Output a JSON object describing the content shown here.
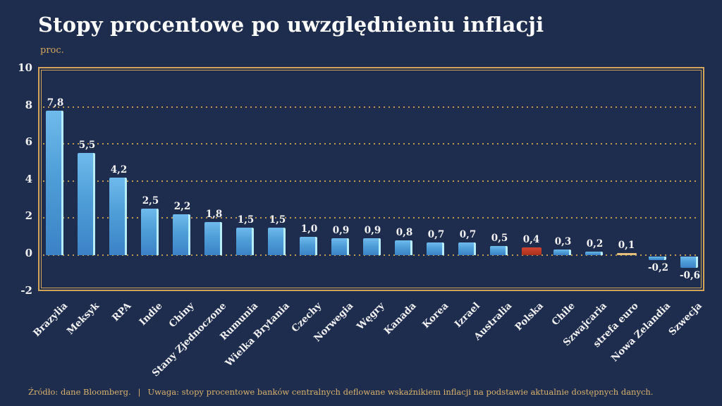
{
  "header": {
    "title": "Stopy procentowe po uwzględnieniu inflacji",
    "unit_label": "proc."
  },
  "chart_data": {
    "type": "bar",
    "title": "Stopy procentowe po uwzględnieniu inflacji",
    "ylabel": "proc.",
    "ylim": [
      -2,
      10
    ],
    "yticks": [
      10,
      8,
      6,
      4,
      2,
      0,
      -2
    ],
    "gridlines_at": [
      8,
      6,
      4,
      2,
      0
    ],
    "grid_style": "dotted gold horizontal lines",
    "legend_position": "none",
    "categories": [
      "Brazylia",
      "Meksyk",
      "RPA",
      "Indie",
      "Chiny",
      "Stany Zjednoczone",
      "Rumunia",
      "Wielka Brytania",
      "Czechy",
      "Norwegia",
      "Węgry",
      "Kanada",
      "Korea",
      "Izrael",
      "Australia",
      "Polska",
      "Chile",
      "Szwajcaria",
      "strefa euro",
      "Nowa Zelandia",
      "Szwecja"
    ],
    "values": [
      7.8,
      5.5,
      4.2,
      2.5,
      2.2,
      1.8,
      1.5,
      1.5,
      1.0,
      0.9,
      0.9,
      0.8,
      0.7,
      0.7,
      0.5,
      0.4,
      0.3,
      0.2,
      0.1,
      -0.2,
      -0.6
    ],
    "labels_display": [
      "7,8",
      "5,5",
      "4,2",
      "2,5",
      "2,2",
      "1,8",
      "1,5",
      "1,5",
      "1,0",
      "0,9",
      "0,9",
      "0,8",
      "0,7",
      "0,7",
      "0,5",
      "0,4",
      "0,3",
      "0,2",
      "0,1",
      "-0,2",
      "-0,6"
    ],
    "bar_color_keys": [
      "blue",
      "blue",
      "blue",
      "blue",
      "blue",
      "blue",
      "blue",
      "blue",
      "blue",
      "blue",
      "blue",
      "blue",
      "blue",
      "blue",
      "blue",
      "red",
      "blue",
      "blue",
      "gold",
      "blue",
      "blue"
    ],
    "palette": {
      "background": "#1e2c4e",
      "bar_blue_top": "#6fbaec",
      "bar_blue_bottom": "#3b82c6",
      "bar_blue_edge": "#b7edf8",
      "highlight_red": "#c7402a",
      "highlight_gold": "#e5c07c",
      "frame_gold": "#d2a559",
      "grid_gold": "#c9a052",
      "label_white": "#ffffff",
      "footer_gold": "#d9b36b"
    }
  },
  "footer": {
    "source": "Źródło: dane Bloomberg.",
    "separator": "|",
    "note": "Uwaga: stopy procentowe banków centralnych deflowane wskaźnikiem inflacji na podstawie aktualnie dostępnych danych."
  }
}
